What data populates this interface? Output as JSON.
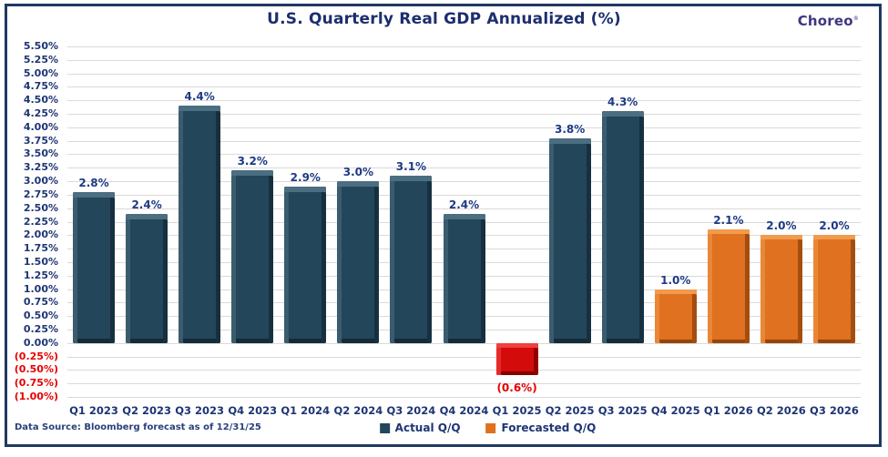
{
  "header": {
    "title": "U.S. Quarterly Real GDP Annualized (%)",
    "logo": "Choreo",
    "logo_mark": "®"
  },
  "footer": {
    "source": "Data Source: Bloomberg forecast as of 12/31/25"
  },
  "legend": {
    "items": [
      {
        "label": "Actual Q/Q",
        "color": "#24465a"
      },
      {
        "label": "Forecasted Q/Q",
        "color": "#df7120"
      }
    ]
  },
  "colors": {
    "actual_bar": "#24465a",
    "forecast_bar": "#df7120",
    "negative_bar": "#d40b0b",
    "navy_text": "#1e3575",
    "red_text": "#e60000",
    "frame_border": "#1f3864",
    "gridline": "#dadada"
  },
  "chart_data": {
    "type": "bar",
    "title": "U.S. Quarterly Real GDP Annualized (%)",
    "xlabel": "",
    "ylabel": "",
    "ylim": [
      -1.0,
      5.5
    ],
    "ytick_step": 0.25,
    "grid": true,
    "legend_position": "bottom",
    "yticks": [
      {
        "value": 5.5,
        "label": "5.50%"
      },
      {
        "value": 5.25,
        "label": "5.25%"
      },
      {
        "value": 5.0,
        "label": "5.00%"
      },
      {
        "value": 4.75,
        "label": "4.75%"
      },
      {
        "value": 4.5,
        "label": "4.50%"
      },
      {
        "value": 4.25,
        "label": "4.25%"
      },
      {
        "value": 4.0,
        "label": "4.00%"
      },
      {
        "value": 3.75,
        "label": "3.75%"
      },
      {
        "value": 3.5,
        "label": "3.50%"
      },
      {
        "value": 3.25,
        "label": "3.25%"
      },
      {
        "value": 3.0,
        "label": "3.00%"
      },
      {
        "value": 2.75,
        "label": "2.75%"
      },
      {
        "value": 2.5,
        "label": "2.50%"
      },
      {
        "value": 2.25,
        "label": "2.25%"
      },
      {
        "value": 2.0,
        "label": "2.00%"
      },
      {
        "value": 1.75,
        "label": "1.75%"
      },
      {
        "value": 1.5,
        "label": "1.50%"
      },
      {
        "value": 1.25,
        "label": "1.25%"
      },
      {
        "value": 1.0,
        "label": "1.00%"
      },
      {
        "value": 0.75,
        "label": "0.75%"
      },
      {
        "value": 0.5,
        "label": "0.50%"
      },
      {
        "value": 0.25,
        "label": "0.25%"
      },
      {
        "value": 0.0,
        "label": "0.00%"
      },
      {
        "value": -0.25,
        "label": "(0.25%)",
        "negative": true
      },
      {
        "value": -0.5,
        "label": "(0.50%)",
        "negative": true
      },
      {
        "value": -0.75,
        "label": "(0.75%)",
        "negative": true
      },
      {
        "value": -1.0,
        "label": "(1.00%)",
        "negative": true
      }
    ],
    "bars": [
      {
        "category": "Q1 2023",
        "value": 2.8,
        "label": "2.8%",
        "kind": "actual"
      },
      {
        "category": "Q2 2023",
        "value": 2.4,
        "label": "2.4%",
        "kind": "actual"
      },
      {
        "category": "Q3 2023",
        "value": 4.4,
        "label": "4.4%",
        "kind": "actual"
      },
      {
        "category": "Q4 2023",
        "value": 3.2,
        "label": "3.2%",
        "kind": "actual"
      },
      {
        "category": "Q1 2024",
        "value": 2.9,
        "label": "2.9%",
        "kind": "actual"
      },
      {
        "category": "Q2 2024",
        "value": 3.0,
        "label": "3.0%",
        "kind": "actual"
      },
      {
        "category": "Q3 2024",
        "value": 3.1,
        "label": "3.1%",
        "kind": "actual"
      },
      {
        "category": "Q4 2024",
        "value": 2.4,
        "label": "2.4%",
        "kind": "actual"
      },
      {
        "category": "Q1 2025",
        "value": -0.6,
        "label": "(0.6%)",
        "kind": "negative"
      },
      {
        "category": "Q2 2025",
        "value": 3.8,
        "label": "3.8%",
        "kind": "actual"
      },
      {
        "category": "Q3 2025",
        "value": 4.3,
        "label": "4.3%",
        "kind": "actual"
      },
      {
        "category": "Q4 2025",
        "value": 1.0,
        "label": "1.0%",
        "kind": "forecast"
      },
      {
        "category": "Q1 2026",
        "value": 2.1,
        "label": "2.1%",
        "kind": "forecast"
      },
      {
        "category": "Q2 2026",
        "value": 2.0,
        "label": "2.0%",
        "kind": "forecast"
      },
      {
        "category": "Q3 2026",
        "value": 2.0,
        "label": "2.0%",
        "kind": "forecast"
      }
    ]
  }
}
